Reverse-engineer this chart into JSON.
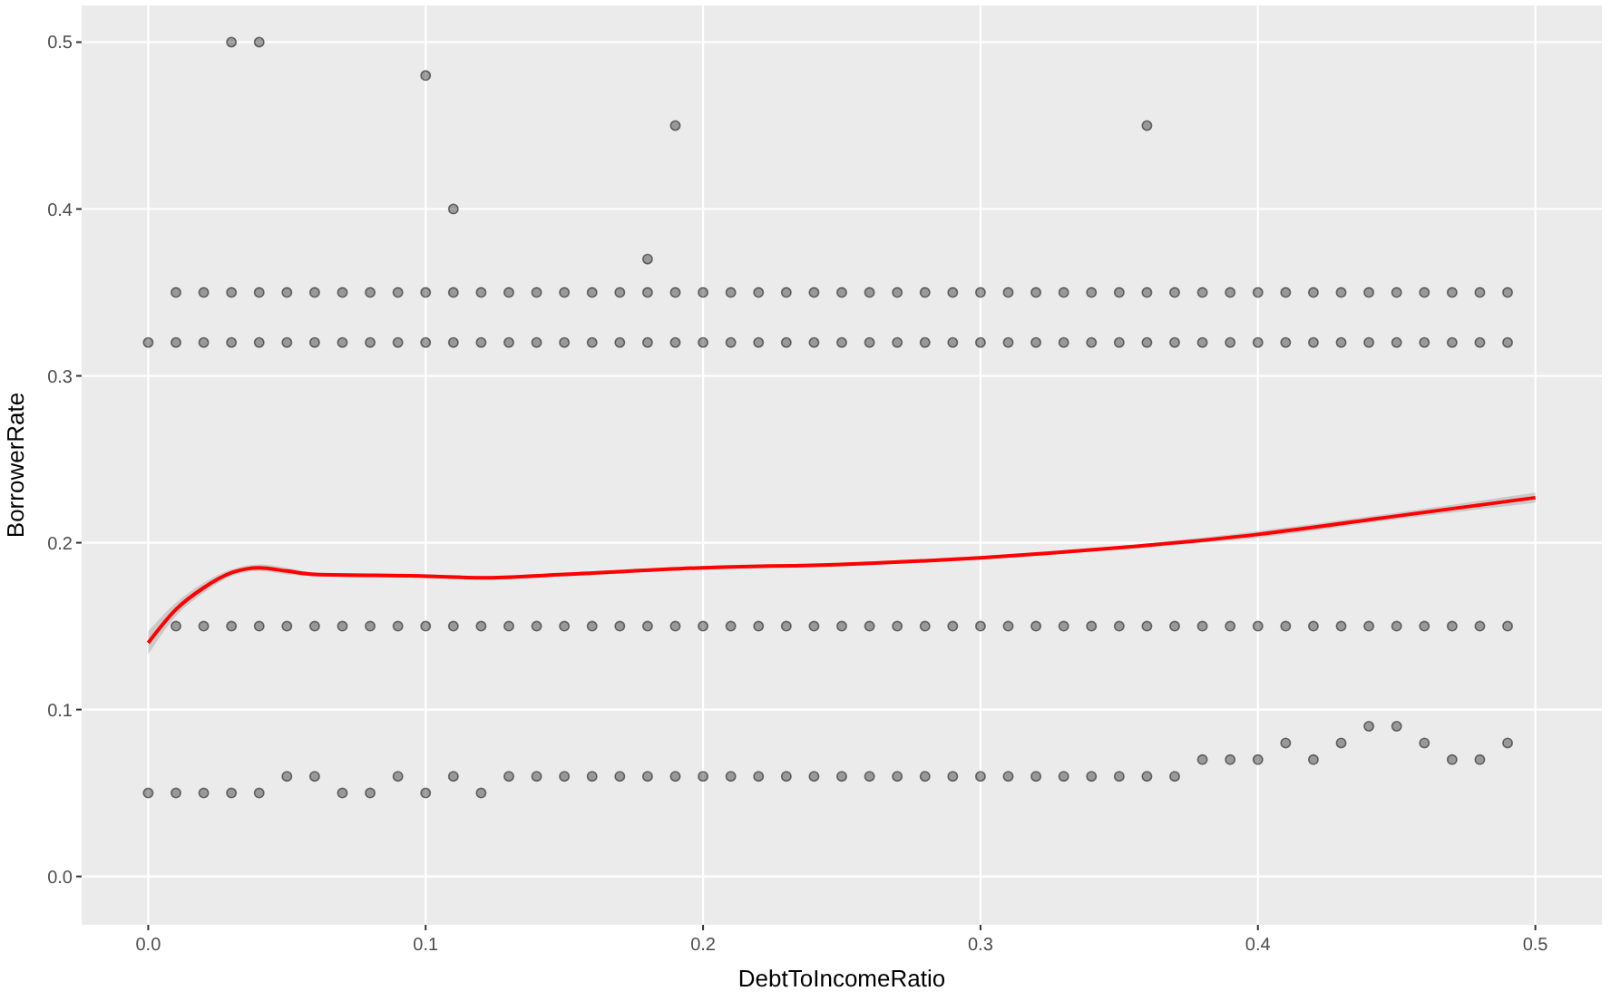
{
  "chart_data": {
    "type": "scatter",
    "xlabel": "DebtToIncomeRatio",
    "ylabel": "BorrowerRate",
    "xlim": [
      -0.024,
      0.524
    ],
    "ylim": [
      -0.029,
      0.522
    ],
    "xticks": [
      {
        "value": 0,
        "label": "0.0"
      },
      0.1,
      0.2,
      0.3,
      0.4,
      0.5
    ],
    "yticks": [
      {
        "value": 0,
        "label": "0.0"
      },
      0.1,
      0.2,
      0.3,
      0.4,
      0.5
    ],
    "grid": true,
    "series": [
      {
        "marker": "circle",
        "color": "#000000",
        "x": [
          0.01,
          0.01,
          0.01,
          0.01,
          0.02,
          0.02,
          0.02,
          0.02,
          0.03,
          0.03,
          0.03,
          0.03,
          0.04,
          0.04,
          0.04,
          0.04,
          0.05,
          0.05,
          0.05,
          0.05,
          0.06,
          0.06,
          0.06,
          0.06,
          0.07,
          0.07,
          0.07,
          0.07,
          0.08,
          0.08,
          0.08,
          0.08,
          0.09,
          0.09,
          0.09,
          0.09,
          0.1,
          0.1,
          0.1,
          0.1,
          0.11,
          0.11,
          0.11,
          0.11,
          0.12,
          0.12,
          0.12,
          0.12,
          0.13,
          0.13,
          0.13,
          0.13,
          0.14,
          0.14,
          0.14,
          0.14,
          0.15,
          0.15,
          0.15,
          0.15,
          0.16,
          0.16,
          0.16,
          0.16,
          0.17,
          0.17,
          0.17,
          0.17,
          0.18,
          0.18,
          0.18,
          0.18,
          0.19,
          0.19,
          0.19,
          0.19,
          0.2,
          0.2,
          0.2,
          0.2,
          0.21,
          0.21,
          0.21,
          0.21,
          0.22,
          0.22,
          0.22,
          0.22,
          0.23,
          0.23,
          0.23,
          0.23,
          0.24,
          0.24,
          0.24,
          0.24,
          0.25,
          0.25,
          0.25,
          0.25,
          0.26,
          0.26,
          0.26,
          0.26,
          0.27,
          0.27,
          0.27,
          0.27,
          0.28,
          0.28,
          0.28,
          0.28,
          0.29,
          0.29,
          0.29,
          0.29,
          0.3,
          0.3,
          0.3,
          0.3,
          0.31,
          0.31,
          0.31,
          0.31,
          0.32,
          0.32,
          0.32,
          0.32,
          0.33,
          0.33,
          0.33,
          0.33,
          0.34,
          0.34,
          0.34,
          0.34,
          0.35,
          0.35,
          0.35,
          0.35,
          0.36,
          0.36,
          0.36,
          0.36,
          0.37,
          0.37,
          0.37,
          0.37,
          0.38,
          0.38,
          0.38,
          0.38,
          0.39,
          0.39,
          0.39,
          0.39,
          0.4,
          0.4,
          0.4,
          0.4,
          0.41,
          0.41,
          0.41,
          0.41,
          0.42,
          0.42,
          0.42,
          0.42,
          0.43,
          0.43,
          0.43,
          0.43,
          0.44,
          0.44,
          0.44,
          0.44,
          0.45,
          0.45,
          0.45,
          0.45,
          0.46,
          0.46,
          0.46,
          0.46,
          0.47,
          0.47,
          0.47,
          0.47,
          0.48,
          0.48,
          0.48,
          0.48,
          0.49,
          0.49,
          0.49,
          0.49,
          0.03,
          0.04,
          0.1,
          0.19,
          0.36,
          0,
          0,
          0.11,
          0.18
        ],
        "values": [
          0.35,
          0.32,
          0.15,
          0.05,
          0.35,
          0.32,
          0.15,
          0.05,
          0.35,
          0.32,
          0.15,
          0.05,
          0.35,
          0.32,
          0.15,
          0.05,
          0.35,
          0.32,
          0.15,
          0.06,
          0.35,
          0.32,
          0.15,
          0.06,
          0.35,
          0.32,
          0.15,
          0.05,
          0.35,
          0.32,
          0.15,
          0.05,
          0.35,
          0.32,
          0.15,
          0.06,
          0.35,
          0.32,
          0.15,
          0.05,
          0.35,
          0.32,
          0.15,
          0.06,
          0.35,
          0.32,
          0.15,
          0.05,
          0.35,
          0.32,
          0.15,
          0.06,
          0.35,
          0.32,
          0.15,
          0.06,
          0.35,
          0.32,
          0.15,
          0.06,
          0.35,
          0.32,
          0.15,
          0.06,
          0.35,
          0.32,
          0.15,
          0.06,
          0.35,
          0.32,
          0.15,
          0.06,
          0.35,
          0.32,
          0.15,
          0.06,
          0.35,
          0.32,
          0.15,
          0.06,
          0.35,
          0.32,
          0.15,
          0.06,
          0.35,
          0.32,
          0.15,
          0.06,
          0.35,
          0.32,
          0.15,
          0.06,
          0.35,
          0.32,
          0.15,
          0.06,
          0.35,
          0.32,
          0.15,
          0.06,
          0.35,
          0.32,
          0.15,
          0.06,
          0.35,
          0.32,
          0.15,
          0.06,
          0.35,
          0.32,
          0.15,
          0.06,
          0.35,
          0.32,
          0.15,
          0.06,
          0.35,
          0.32,
          0.15,
          0.06,
          0.35,
          0.32,
          0.15,
          0.06,
          0.35,
          0.32,
          0.15,
          0.06,
          0.35,
          0.32,
          0.15,
          0.06,
          0.35,
          0.32,
          0.15,
          0.06,
          0.35,
          0.32,
          0.15,
          0.06,
          0.35,
          0.32,
          0.15,
          0.06,
          0.35,
          0.32,
          0.15,
          0.06,
          0.35,
          0.32,
          0.15,
          0.07,
          0.35,
          0.32,
          0.15,
          0.07,
          0.35,
          0.32,
          0.15,
          0.07,
          0.35,
          0.32,
          0.15,
          0.08,
          0.35,
          0.32,
          0.15,
          0.07,
          0.35,
          0.32,
          0.15,
          0.08,
          0.35,
          0.32,
          0.15,
          0.09,
          0.35,
          0.32,
          0.15,
          0.09,
          0.35,
          0.32,
          0.15,
          0.08,
          0.35,
          0.32,
          0.15,
          0.07,
          0.35,
          0.32,
          0.15,
          0.07,
          0.35,
          0.32,
          0.15,
          0.08,
          0.5,
          0.5,
          0.48,
          0.45,
          0.45,
          0.32,
          0.05,
          0.4,
          0.37
        ]
      },
      {
        "type": "line",
        "color": "#ff0000",
        "x": [
          0,
          0.01,
          0.02,
          0.03,
          0.04,
          0.05,
          0.06,
          0.1,
          0.12,
          0.15,
          0.2,
          0.25,
          0.3,
          0.35,
          0.4,
          0.45,
          0.5
        ],
        "values": [
          0.14,
          0.16,
          0.173,
          0.182,
          0.185,
          0.183,
          0.181,
          0.18,
          0.179,
          0.181,
          0.185,
          0.187,
          0.191,
          0.197,
          0.205,
          0.216,
          0.227
        ],
        "lower": [
          0.133,
          0.156,
          0.17,
          0.18,
          0.183,
          0.181,
          0.18,
          0.179,
          0.178,
          0.18,
          0.184,
          0.186,
          0.19,
          0.196,
          0.203,
          0.214,
          0.224
        ],
        "upper": [
          0.147,
          0.164,
          0.176,
          0.184,
          0.187,
          0.185,
          0.182,
          0.181,
          0.18,
          0.182,
          0.186,
          0.188,
          0.192,
          0.198,
          0.207,
          0.218,
          0.23
        ]
      }
    ]
  }
}
